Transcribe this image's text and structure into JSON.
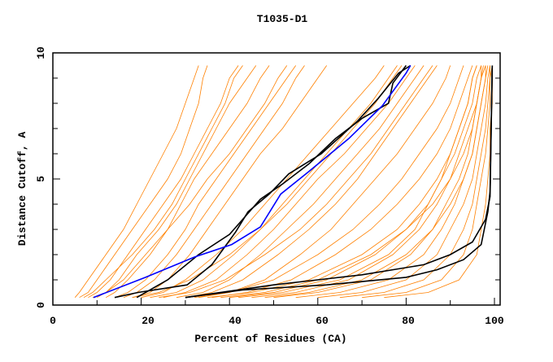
{
  "chart_data": {
    "type": "line",
    "title": "T1035-D1",
    "xlabel": "Percent of Residues (CA)",
    "ylabel": "Distance Cutoff, A",
    "xlim": [
      0,
      100
    ],
    "ylim": [
      0,
      10
    ],
    "x_ticks": [
      "0",
      "20",
      "40",
      "60",
      "80",
      "100"
    ],
    "y_ticks": [
      "0",
      "5",
      "10"
    ],
    "grid": false,
    "colors": {
      "models": "#ff8000",
      "highlight": "#000000",
      "best": "#0000ff"
    },
    "orange_y_levels": [
      0.3,
      0.5,
      1,
      2,
      3,
      4,
      5,
      6,
      7,
      8,
      9,
      9.5
    ],
    "orange_series_x": [
      [
        5,
        6,
        8,
        12,
        16,
        19,
        22,
        25,
        28,
        30,
        32,
        33
      ],
      [
        6,
        8,
        10,
        14,
        18,
        22,
        26,
        29,
        31,
        33,
        34,
        35
      ],
      [
        8,
        10,
        13,
        17,
        21,
        25,
        29,
        32,
        35,
        38,
        40,
        42
      ],
      [
        10,
        12,
        15,
        19,
        24,
        28,
        31,
        34,
        37,
        40,
        44,
        46
      ],
      [
        12,
        14,
        17,
        22,
        26,
        29,
        32,
        36,
        40,
        44,
        47,
        49
      ],
      [
        7,
        9,
        12,
        18,
        23,
        27,
        30,
        33,
        36,
        39,
        41,
        43
      ],
      [
        14,
        17,
        21,
        26,
        30,
        33,
        37,
        41,
        45,
        49,
        53,
        55
      ],
      [
        16,
        19,
        23,
        28,
        32,
        36,
        40,
        44,
        48,
        52,
        55,
        57
      ],
      [
        9,
        12,
        16,
        21,
        26,
        31,
        35,
        40,
        44,
        48,
        51,
        53
      ],
      [
        18,
        22,
        26,
        31,
        35,
        39,
        43,
        47,
        52,
        56,
        60,
        62
      ],
      [
        20,
        25,
        30,
        37,
        43,
        48,
        53,
        58,
        63,
        68,
        73,
        75
      ],
      [
        22,
        28,
        34,
        41,
        47,
        52,
        57,
        62,
        67,
        72,
        76,
        78
      ],
      [
        25,
        30,
        37,
        44,
        50,
        55,
        60,
        66,
        71,
        76,
        80,
        82
      ],
      [
        18,
        24,
        31,
        40,
        47,
        53,
        58,
        63,
        68,
        73,
        77,
        79
      ],
      [
        28,
        34,
        40,
        47,
        53,
        59,
        64,
        69,
        74,
        78,
        82,
        84
      ],
      [
        30,
        36,
        43,
        51,
        58,
        64,
        69,
        73,
        77,
        81,
        85,
        87
      ],
      [
        24,
        31,
        39,
        48,
        56,
        62,
        67,
        72,
        76,
        80,
        84,
        86
      ],
      [
        33,
        40,
        48,
        56,
        63,
        68,
        73,
        78,
        82,
        86,
        89,
        90
      ],
      [
        35,
        45,
        58,
        70,
        78,
        83,
        87,
        90,
        92,
        94,
        95,
        96
      ],
      [
        40,
        50,
        62,
        73,
        80,
        85,
        88,
        91,
        93,
        95,
        96,
        97
      ],
      [
        45,
        55,
        67,
        77,
        83,
        87,
        90,
        92,
        94,
        96,
        97,
        97.5
      ],
      [
        50,
        60,
        72,
        81,
        86,
        89,
        92,
        94,
        95,
        96,
        97,
        98
      ],
      [
        55,
        65,
        76,
        84,
        88,
        91,
        93,
        95,
        96,
        97,
        98,
        98.5
      ],
      [
        60,
        70,
        80,
        87,
        90,
        93,
        95,
        96,
        97,
        98,
        98.5,
        99
      ],
      [
        65,
        75,
        84,
        90,
        93,
        95,
        96,
        97,
        98,
        98.5,
        99,
        99
      ],
      [
        70,
        80,
        88,
        93,
        95,
        96,
        97,
        98,
        98.5,
        99,
        99,
        99.5
      ],
      [
        38,
        48,
        60,
        72,
        80,
        86,
        90,
        93,
        95,
        96,
        97,
        97
      ],
      [
        48,
        58,
        70,
        80,
        86,
        90,
        93,
        95,
        96,
        97,
        98,
        98
      ],
      [
        75,
        85,
        92,
        96,
        97,
        98,
        98.5,
        99,
        99,
        99.5,
        99.5,
        99.5
      ],
      [
        42,
        52,
        65,
        76,
        82,
        85,
        88,
        90,
        92,
        94,
        95,
        96
      ],
      [
        36,
        44,
        54,
        64,
        72,
        78,
        83,
        87,
        90,
        92,
        94,
        95
      ],
      [
        32,
        40,
        50,
        60,
        68,
        74,
        79,
        83,
        87,
        90,
        92,
        93
      ]
    ],
    "black_series": [
      [
        [
          14,
          0.3
        ],
        [
          19.3,
          0.5
        ],
        [
          30.4,
          0.8
        ],
        [
          36,
          1.6
        ],
        [
          41.4,
          2.9
        ],
        [
          44.2,
          3.7
        ],
        [
          49,
          4.4
        ],
        [
          53.4,
          5.2
        ],
        [
          60.8,
          6.0
        ],
        [
          69,
          7.3
        ],
        [
          73.7,
          8.2
        ],
        [
          78.3,
          9.2
        ],
        [
          81,
          9.5
        ]
      ],
      [
        [
          19,
          0.3
        ],
        [
          26,
          1.0
        ],
        [
          33,
          2.0
        ],
        [
          40,
          2.8
        ],
        [
          43,
          3.4
        ],
        [
          47,
          4.2
        ],
        [
          52,
          4.8
        ],
        [
          58,
          5.6
        ],
        [
          64,
          6.6
        ],
        [
          70,
          7.4
        ],
        [
          76,
          8.0
        ],
        [
          77,
          8.8
        ],
        [
          80,
          9.5
        ]
      ],
      [
        [
          30,
          0.3
        ],
        [
          43,
          0.6
        ],
        [
          62,
          0.8
        ],
        [
          80,
          1.1
        ],
        [
          87,
          1.4
        ],
        [
          93,
          1.8
        ],
        [
          97,
          2.4
        ],
        [
          98.5,
          3.7
        ],
        [
          99,
          4.5
        ],
        [
          99.5,
          9.5
        ]
      ],
      [
        [
          30,
          0.3
        ],
        [
          50,
          0.8
        ],
        [
          70,
          1.2
        ],
        [
          84,
          1.6
        ],
        [
          90,
          2.0
        ],
        [
          95,
          2.5
        ],
        [
          98,
          3.4
        ],
        [
          99,
          4.3
        ],
        [
          99.5,
          9.5
        ]
      ]
    ],
    "blue_series": [
      [
        9.2,
        0.3
      ],
      [
        21,
        1.1
      ],
      [
        32,
        1.9
      ],
      [
        40.5,
        2.4
      ],
      [
        47,
        3.1
      ],
      [
        51.6,
        4.4
      ],
      [
        58,
        5.3
      ],
      [
        67,
        6.6
      ],
      [
        74.6,
        7.9
      ],
      [
        80,
        9.2
      ],
      [
        81,
        9.5
      ]
    ]
  }
}
